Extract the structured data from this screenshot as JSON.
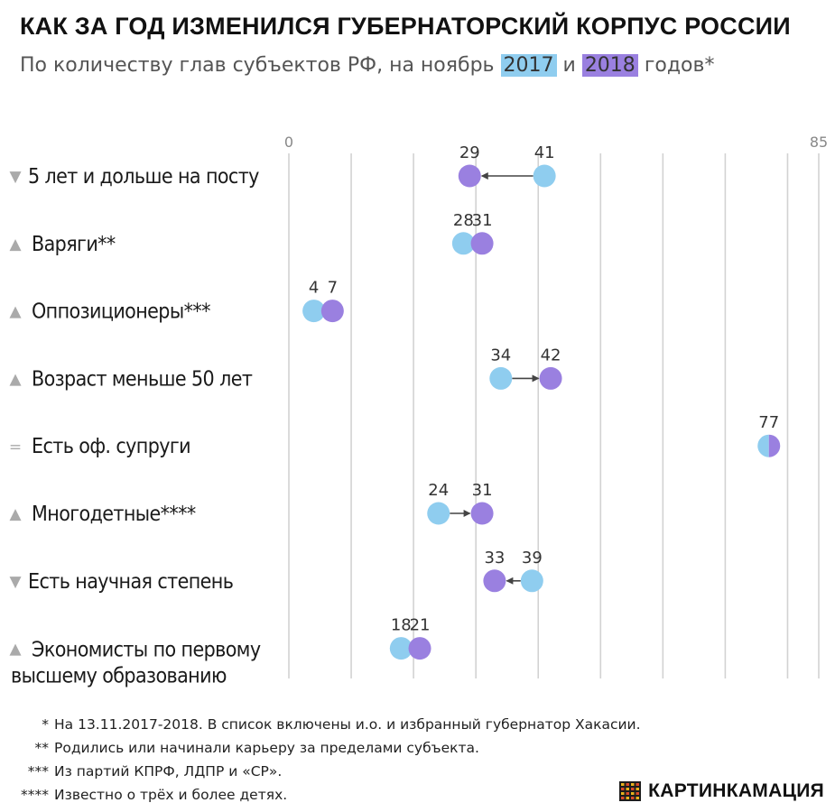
{
  "title": "КАК ЗА ГОД ИЗМЕНИЛСЯ ГУБЕРНАТОРСКИЙ КОРПУС РОССИИ",
  "subtitle": {
    "prefix": "По количеству глав субъектов РФ, на ноябрь",
    "year_2017": "2017",
    "conjunction": "и",
    "year_2018": "2018",
    "suffix": "годов*"
  },
  "colors": {
    "year_2017": "#8fcdef",
    "year_2018": "#9a80e0",
    "grid": "#d2d2d2",
    "arrow": "#444444"
  },
  "chart_data": {
    "type": "dumbbell",
    "xlim": [
      0,
      85
    ],
    "axis_ticks": [
      "0",
      "85"
    ],
    "series": [
      {
        "name": "2017"
      },
      {
        "name": "2018"
      }
    ],
    "rows": [
      {
        "label": "5 лет и дольше на посту",
        "trend": "▼",
        "v2017": 41,
        "v2018": 29
      },
      {
        "label": "Варяги**",
        "trend": "▲",
        "v2017": 28,
        "v2018": 31
      },
      {
        "label": "Оппозиционеры***",
        "trend": "▲",
        "v2017": 4,
        "v2018": 7
      },
      {
        "label": "Возраст меньше 50 лет",
        "trend": "▲",
        "v2017": 34,
        "v2018": 42
      },
      {
        "label": "Есть оф. супруги",
        "trend": "=",
        "v2017": 77,
        "v2018": 77
      },
      {
        "label": "Многодетные****",
        "trend": "▲",
        "v2017": 24,
        "v2018": 31
      },
      {
        "label": "Есть научная степень",
        "trend": "▼",
        "v2017": 39,
        "v2018": 33
      },
      {
        "label": [
          "Экономисты по первому",
          "высшему образованию"
        ],
        "trend": "▲",
        "v2017": 18,
        "v2018": 21
      }
    ]
  },
  "footnotes": [
    {
      "mark": "*",
      "text": "На 13.11.2017-2018. В список включены и.о. и избранный губернатор Хакасии."
    },
    {
      "mark": "**",
      "text": "Родились или начинали карьеру за пределами субъекта."
    },
    {
      "mark": "***",
      "text": "Из партий КПРФ, ЛДПР и «СР»."
    },
    {
      "mark": "****",
      "text": "Известно о трёх и более детях."
    }
  ],
  "logo": {
    "text": "КАРТИНКАМАЦИЯ",
    "icon": "film-grid-icon"
  }
}
